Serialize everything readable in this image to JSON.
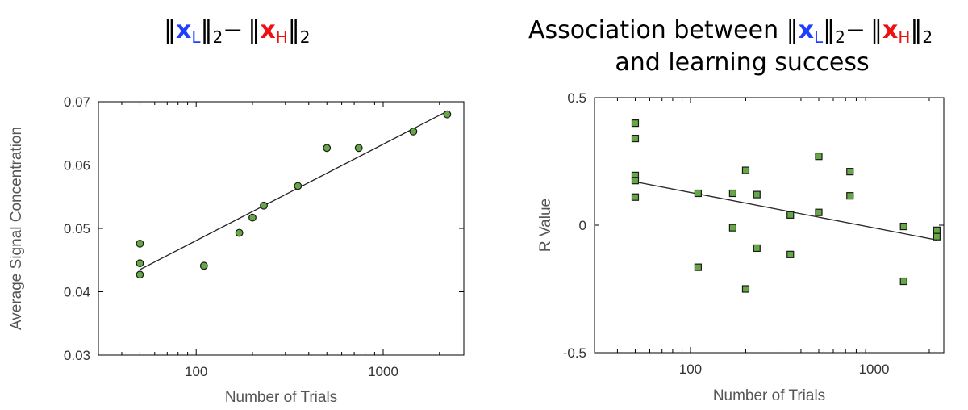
{
  "figure": {
    "colors": {
      "L": "#1f3fff",
      "H": "#ee1111",
      "marker_fill": "#66a845",
      "marker_edge": "#1a1a1a"
    },
    "left_title": {
      "norm": "‖",
      "x": "x",
      "L": "L",
      "H": "H",
      "two": "2",
      "minus": "−"
    },
    "right_title": {
      "prefix": "Association between ",
      "line2": "and learning success"
    }
  },
  "chart_data": [
    {
      "type": "scatter",
      "xscale": "log",
      "xlim": [
        30,
        2700
      ],
      "ylim": [
        0.03,
        0.07
      ],
      "xticks": [
        {
          "value": 100,
          "label": "100"
        },
        {
          "value": 1000,
          "label": "1000"
        }
      ],
      "yticks": [
        {
          "value": 0.03,
          "label": "0.03"
        },
        {
          "value": 0.04,
          "label": "0.04"
        },
        {
          "value": 0.05,
          "label": "0.05"
        },
        {
          "value": 0.06,
          "label": "0.06"
        },
        {
          "value": 0.07,
          "label": "0.07"
        }
      ],
      "xlabel": "Number of Trials",
      "ylabel": "Average Signal Concentration",
      "marker": "circle",
      "points": [
        {
          "x": 50,
          "y": 0.0476
        },
        {
          "x": 50,
          "y": 0.0445
        },
        {
          "x": 50,
          "y": 0.0427
        },
        {
          "x": 110,
          "y": 0.0441
        },
        {
          "x": 170,
          "y": 0.0493
        },
        {
          "x": 200,
          "y": 0.0517
        },
        {
          "x": 230,
          "y": 0.0536
        },
        {
          "x": 350,
          "y": 0.0567
        },
        {
          "x": 500,
          "y": 0.0627
        },
        {
          "x": 740,
          "y": 0.0627
        },
        {
          "x": 1450,
          "y": 0.0653
        },
        {
          "x": 2200,
          "y": 0.068
        }
      ],
      "fit_line": [
        {
          "x": 50,
          "y": 0.0435
        },
        {
          "x": 2200,
          "y": 0.0685
        }
      ]
    },
    {
      "type": "scatter",
      "xscale": "log",
      "xlim": [
        30,
        2400
      ],
      "ylim": [
        -0.5,
        0.5
      ],
      "xticks": [
        {
          "value": 100,
          "label": "100"
        },
        {
          "value": 1000,
          "label": "1000"
        }
      ],
      "yticks": [
        {
          "value": -0.5,
          "label": "-0.5"
        },
        {
          "value": 0,
          "label": "0"
        },
        {
          "value": 0.5,
          "label": "0.5"
        }
      ],
      "xlabel": "Number of Trials",
      "ylabel": "R Value",
      "marker": "square",
      "points": [
        {
          "x": 50,
          "y": 0.4
        },
        {
          "x": 50,
          "y": 0.34
        },
        {
          "x": 50,
          "y": 0.195
        },
        {
          "x": 50,
          "y": 0.175
        },
        {
          "x": 50,
          "y": 0.11
        },
        {
          "x": 110,
          "y": 0.125
        },
        {
          "x": 110,
          "y": -0.165
        },
        {
          "x": 170,
          "y": 0.125
        },
        {
          "x": 170,
          "y": -0.01
        },
        {
          "x": 200,
          "y": 0.215
        },
        {
          "x": 200,
          "y": -0.25
        },
        {
          "x": 230,
          "y": 0.12
        },
        {
          "x": 230,
          "y": -0.09
        },
        {
          "x": 350,
          "y": 0.04
        },
        {
          "x": 350,
          "y": -0.115
        },
        {
          "x": 500,
          "y": 0.27
        },
        {
          "x": 500,
          "y": 0.05
        },
        {
          "x": 740,
          "y": 0.21
        },
        {
          "x": 740,
          "y": 0.115
        },
        {
          "x": 1450,
          "y": -0.005
        },
        {
          "x": 1450,
          "y": -0.22
        },
        {
          "x": 2200,
          "y": -0.02
        },
        {
          "x": 2200,
          "y": -0.045
        }
      ],
      "fit_line": [
        {
          "x": 50,
          "y": 0.17
        },
        {
          "x": 2200,
          "y": -0.058
        }
      ]
    }
  ]
}
